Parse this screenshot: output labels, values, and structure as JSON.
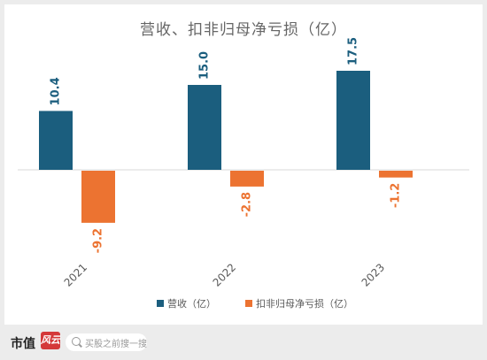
{
  "chart_data": {
    "type": "bar",
    "title": "营收、扣非归母净亏损（亿）",
    "categories": [
      "2021",
      "2022",
      "2023"
    ],
    "series": [
      {
        "name": "营收（亿）",
        "values": [
          10.4,
          15.0,
          17.5
        ],
        "labels": [
          "10.4",
          "15.0",
          "17.5"
        ],
        "color": "#1b5e7e"
      },
      {
        "name": "扣非归母净亏损（亿）",
        "values": [
          -9.2,
          -2.8,
          -1.2
        ],
        "labels": [
          "-9.2",
          "-2.8",
          "-1.2"
        ],
        "color": "#ec7331"
      }
    ],
    "ylim": [
      -12,
      20
    ],
    "grid": false,
    "legend_position": "bottom"
  },
  "footer": {
    "brand": "市值",
    "brand_logo": "风云",
    "search_placeholder": "买股之前搜一搜",
    "search_icon": "search-icon"
  }
}
